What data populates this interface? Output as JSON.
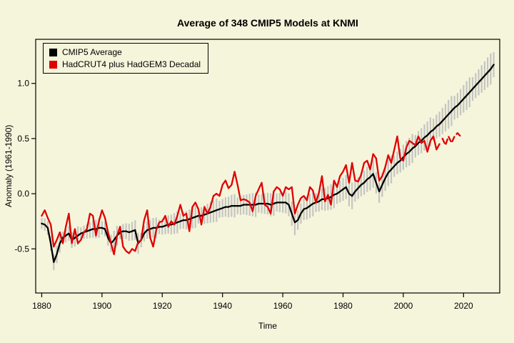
{
  "page": {
    "background": "#f5f5dc"
  },
  "chart": {
    "title": "Average of 348 CMIP5 Models at KNMI",
    "xlabel": "Time",
    "ylabel": "Anomaly (1961-1990)"
  },
  "legend": {
    "items": [
      {
        "label": "CMIP5 Average",
        "color": "#000000"
      },
      {
        "label": "HadCRUT4 plus HadGEM3 Decadal",
        "color": "#e00000"
      }
    ]
  },
  "chart_data": {
    "type": "line",
    "title": "Average of 348 CMIP5 Models at KNMI",
    "xlabel": "Time",
    "ylabel": "Anomaly (1961-1990)",
    "xlim": [
      1878,
      2032
    ],
    "ylim": [
      -0.9,
      1.4
    ],
    "xticks": [
      1880,
      1900,
      1920,
      1940,
      1960,
      1980,
      2000,
      2020
    ],
    "yticks": [
      -0.5,
      0.0,
      0.5,
      1.0
    ],
    "grid": false,
    "legend_position": "top-left",
    "uncertainty_band": {
      "series": "CMIP5 Average",
      "color": "#bdbdbd",
      "halfwidth_start": 0.05,
      "halfwidth_end": 0.11
    },
    "series": [
      {
        "name": "CMIP5 Average",
        "color": "#000000",
        "style": "solid",
        "x_start": 1880,
        "x_step": 1,
        "values": [
          -0.27,
          -0.28,
          -0.31,
          -0.45,
          -0.62,
          -0.55,
          -0.45,
          -0.4,
          -0.38,
          -0.36,
          -0.42,
          -0.4,
          -0.38,
          -0.36,
          -0.35,
          -0.34,
          -0.33,
          -0.32,
          -0.32,
          -0.31,
          -0.31,
          -0.32,
          -0.4,
          -0.45,
          -0.42,
          -0.38,
          -0.35,
          -0.34,
          -0.34,
          -0.35,
          -0.34,
          -0.33,
          -0.45,
          -0.42,
          -0.36,
          -0.33,
          -0.32,
          -0.31,
          -0.31,
          -0.3,
          -0.3,
          -0.29,
          -0.28,
          -0.28,
          -0.27,
          -0.26,
          -0.25,
          -0.24,
          -0.24,
          -0.23,
          -0.22,
          -0.21,
          -0.2,
          -0.2,
          -0.19,
          -0.18,
          -0.17,
          -0.16,
          -0.15,
          -0.14,
          -0.13,
          -0.12,
          -0.12,
          -0.11,
          -0.11,
          -0.11,
          -0.11,
          -0.1,
          -0.1,
          -0.1,
          -0.1,
          -0.1,
          -0.09,
          -0.09,
          -0.09,
          -0.09,
          -0.1,
          -0.09,
          -0.08,
          -0.08,
          -0.08,
          -0.08,
          -0.1,
          -0.18,
          -0.26,
          -0.24,
          -0.18,
          -0.14,
          -0.13,
          -0.11,
          -0.09,
          -0.08,
          -0.07,
          -0.05,
          -0.05,
          -0.04,
          -0.03,
          -0.01,
          0.0,
          0.02,
          0.04,
          0.06,
          0.0,
          -0.02,
          0.02,
          0.05,
          0.08,
          0.1,
          0.13,
          0.15,
          0.18,
          0.1,
          0.02,
          0.08,
          0.14,
          0.19,
          0.22,
          0.25,
          0.28,
          0.3,
          0.33,
          0.36,
          0.38,
          0.41,
          0.43,
          0.46,
          0.48,
          0.51,
          0.53,
          0.56,
          0.58,
          0.61,
          0.63,
          0.66,
          0.69,
          0.72,
          0.75,
          0.78,
          0.8,
          0.83,
          0.86,
          0.89,
          0.92,
          0.95,
          0.98,
          1.01,
          1.04,
          1.07,
          1.1,
          1.13,
          1.17
        ]
      },
      {
        "name": "HadCRUT4",
        "color": "#e00000",
        "style": "solid",
        "x_start": 1880,
        "x_step": 1,
        "values": [
          -0.2,
          -0.15,
          -0.22,
          -0.28,
          -0.48,
          -0.42,
          -0.35,
          -0.45,
          -0.3,
          -0.18,
          -0.45,
          -0.32,
          -0.45,
          -0.42,
          -0.35,
          -0.32,
          -0.18,
          -0.2,
          -0.38,
          -0.25,
          -0.15,
          -0.22,
          -0.35,
          -0.45,
          -0.55,
          -0.38,
          -0.3,
          -0.48,
          -0.52,
          -0.54,
          -0.5,
          -0.52,
          -0.44,
          -0.42,
          -0.24,
          -0.15,
          -0.4,
          -0.48,
          -0.33,
          -0.26,
          -0.25,
          -0.2,
          -0.3,
          -0.25,
          -0.28,
          -0.2,
          -0.1,
          -0.2,
          -0.18,
          -0.34,
          -0.12,
          -0.08,
          -0.14,
          -0.28,
          -0.12,
          -0.18,
          -0.12,
          -0.02,
          0.0,
          -0.02,
          0.08,
          0.12,
          0.05,
          0.08,
          0.2,
          0.08,
          -0.06,
          -0.05,
          -0.06,
          -0.08,
          -0.16,
          -0.02,
          0.04,
          0.1,
          -0.1,
          -0.12,
          -0.18,
          0.02,
          0.06,
          0.04,
          -0.02,
          0.06,
          0.04,
          0.06,
          -0.18,
          -0.1,
          -0.04,
          -0.02,
          -0.06,
          0.06,
          0.03,
          -0.08,
          0.01,
          0.16,
          -0.07,
          -0.01,
          -0.1,
          0.12,
          0.06,
          0.16,
          0.2,
          0.26,
          0.1,
          0.28,
          0.12,
          0.11,
          0.17,
          0.28,
          0.3,
          0.22,
          0.36,
          0.32,
          0.12,
          0.16,
          0.24,
          0.35,
          0.28,
          0.4,
          0.52,
          0.32,
          0.3,
          0.42,
          0.48,
          0.46,
          0.44,
          0.52,
          0.46,
          0.48,
          0.38,
          0.48,
          0.52,
          0.4,
          0.45
        ]
      },
      {
        "name": "HadGEM3 Decadal forecast",
        "color": "#e00000",
        "style": "dashed",
        "x_start": 2013,
        "x_step": 1,
        "values": [
          0.5,
          0.44,
          0.52,
          0.46,
          0.52,
          0.55,
          0.52
        ]
      }
    ]
  }
}
